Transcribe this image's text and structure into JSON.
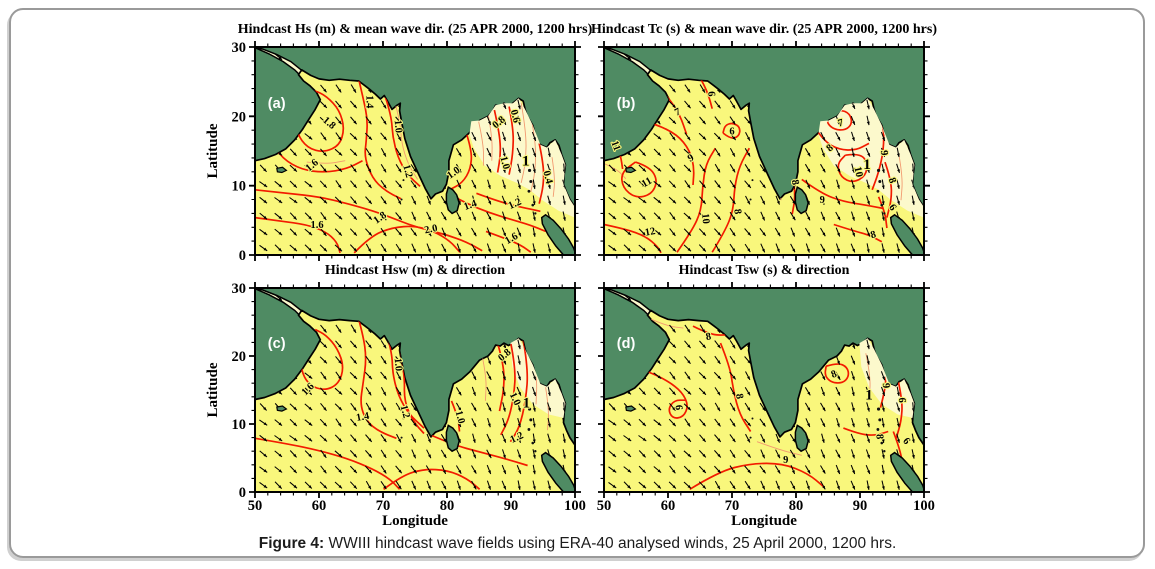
{
  "caption": {
    "label": "Figure 4:",
    "text": "WWIII hindcast wave fields using ERA-40 analysed winds, 25 April 2000, 1200 hrs."
  },
  "axes": {
    "x_label": "Longitude",
    "y_label": "Latitude",
    "x_ticks": [
      50,
      60,
      70,
      80,
      90,
      100
    ],
    "y_ticks": [
      30,
      20,
      10,
      0
    ],
    "x_range": [
      50,
      100
    ],
    "y_range": [
      0,
      30
    ],
    "minor_step_deg": 2
  },
  "colors": {
    "land": "#4f8b63",
    "sea": "#f9f77c",
    "sea_pale": "#fcf9cc",
    "coast": "#000000",
    "contour_major": "#f21b00",
    "contour_minor": "#f29a70",
    "arrow": "#000000",
    "panel_letter": "#ffffff",
    "frame": "#9a9a9a"
  },
  "panels": [
    {
      "id": "a",
      "letter": "(a)",
      "title": "Hindcast Hs (m) & mean wave dir. (25 APR 2000, 1200 hrs)",
      "contour_labels": [
        {
          "v": "1.8",
          "lon": 61.3,
          "lat": 18.7,
          "rot": 40
        },
        {
          "v": "1.6",
          "lon": 59.2,
          "lat": 12.6,
          "rot": -40
        },
        {
          "v": "1.4",
          "lon": 67.4,
          "lat": 22.1,
          "rot": 90
        },
        {
          "v": "1.0",
          "lon": 71.9,
          "lat": 18.5,
          "rot": 85
        },
        {
          "v": "1.2",
          "lon": 73.4,
          "lat": 12.0,
          "rot": 75
        },
        {
          "v": "0.8",
          "lon": 88.4,
          "lat": 18.8,
          "rot": -40
        },
        {
          "v": "0.6",
          "lon": 90.2,
          "lat": 19.9,
          "rot": 75
        },
        {
          "v": "1.0",
          "lon": 88.6,
          "lat": 13.2,
          "rot": 75
        },
        {
          "v": "1",
          "lon": 92.3,
          "lat": 12.9,
          "rot": 0,
          "big": true
        },
        {
          "v": "0.4",
          "lon": 95.3,
          "lat": 11.1,
          "rot": 75
        },
        {
          "v": "1.0",
          "lon": 81.3,
          "lat": 11.5,
          "rot": -35
        },
        {
          "v": "1.4",
          "lon": 83.8,
          "lat": 6.8,
          "rot": -20
        },
        {
          "v": "1.2",
          "lon": 90.8,
          "lat": 7.0,
          "rot": -25
        },
        {
          "v": "1.6",
          "lon": 59.7,
          "lat": 3.9,
          "rot": 0
        },
        {
          "v": "1.8",
          "lon": 69.8,
          "lat": 5.0,
          "rot": -35
        },
        {
          "v": "2.0",
          "lon": 77.6,
          "lat": 3.3,
          "rot": -12
        },
        {
          "v": "1.6",
          "lon": 90.3,
          "lat": 2.0,
          "rot": -30
        }
      ]
    },
    {
      "id": "b",
      "letter": "(b)",
      "title": "Hindcast Tc (s) & mean wave dir. (25 APR 2000, 1200 hrs)",
      "contour_labels": [
        {
          "v": "6",
          "lon": 66.3,
          "lat": 23.2,
          "rot": 85
        },
        {
          "v": "7",
          "lon": 61.7,
          "lat": 20.2,
          "rot": -25
        },
        {
          "v": "6",
          "lon": 70.0,
          "lat": 17.4,
          "rot": 0
        },
        {
          "v": "9",
          "lon": 63.8,
          "lat": 13.6,
          "rot": -30
        },
        {
          "v": "11",
          "lon": 51.4,
          "lat": 15.6,
          "rot": 70
        },
        {
          "v": "11",
          "lon": 56.9,
          "lat": 10.1,
          "rot": -30
        },
        {
          "v": "12",
          "lon": 57.3,
          "lat": 2.9,
          "rot": -10
        },
        {
          "v": "10",
          "lon": 65.4,
          "lat": 5.2,
          "rot": 85
        },
        {
          "v": "8",
          "lon": 70.4,
          "lat": 6.2,
          "rot": 82
        },
        {
          "v": "8",
          "lon": 79.4,
          "lat": 10.4,
          "rot": 80
        },
        {
          "v": "9",
          "lon": 84.1,
          "lat": 7.5,
          "rot": 0
        },
        {
          "v": "7",
          "lon": 87.1,
          "lat": 18.6,
          "rot": -15
        },
        {
          "v": "8",
          "lon": 85.6,
          "lat": 15.1,
          "rot": -40
        },
        {
          "v": "10",
          "lon": 89.3,
          "lat": 11.9,
          "rot": 78
        },
        {
          "v": "1",
          "lon": 91.1,
          "lat": 12.4,
          "rot": 0,
          "big": true
        },
        {
          "v": "9",
          "lon": 93.3,
          "lat": 14.7,
          "rot": 85
        },
        {
          "v": "8",
          "lon": 94.6,
          "lat": 10.6,
          "rot": 70
        },
        {
          "v": "6",
          "lon": 94.7,
          "lat": 6.6,
          "rot": 55
        },
        {
          "v": "8",
          "lon": 92.2,
          "lat": 2.5,
          "rot": -15
        }
      ]
    },
    {
      "id": "c",
      "letter": "(c)",
      "title": "Hindcast Hsw (m) & direction",
      "contour_labels": [
        {
          "v": "1.6",
          "lon": 58.6,
          "lat": 14.8,
          "rot": -45
        },
        {
          "v": "1.0",
          "lon": 71.9,
          "lat": 18.7,
          "rot": 85
        },
        {
          "v": "1.2",
          "lon": 73.0,
          "lat": 11.7,
          "rot": 75
        },
        {
          "v": "1.4",
          "lon": 66.9,
          "lat": 10.6,
          "rot": -10
        },
        {
          "v": "0.8",
          "lon": 89.3,
          "lat": 19.8,
          "rot": -40
        },
        {
          "v": "1.0",
          "lon": 90.2,
          "lat": 13.5,
          "rot": 65
        },
        {
          "v": "1",
          "lon": 92.4,
          "lat": 12.4,
          "rot": 0,
          "big": true
        },
        {
          "v": "1.0",
          "lon": 81.6,
          "lat": 10.9,
          "rot": 75
        },
        {
          "v": "1.2",
          "lon": 91.1,
          "lat": 7.6,
          "rot": -25
        }
      ]
    },
    {
      "id": "d",
      "letter": "(d)",
      "title": "Hindcast Tsw (s) & direction",
      "contour_labels": [
        {
          "v": "8",
          "lon": 66.4,
          "lat": 22.4,
          "rot": -10
        },
        {
          "v": "6",
          "lon": 61.2,
          "lat": 12.4,
          "rot": 85
        },
        {
          "v": "8",
          "lon": 70.7,
          "lat": 14.0,
          "rot": 80
        },
        {
          "v": "9",
          "lon": 78.4,
          "lat": 4.3,
          "rot": 0
        },
        {
          "v": "8",
          "lon": 86.1,
          "lat": 16.9,
          "rot": -20
        },
        {
          "v": "1",
          "lon": 91.4,
          "lat": 13.6,
          "rot": 0,
          "big": true
        },
        {
          "v": "9",
          "lon": 93.6,
          "lat": 15.6,
          "rot": 85
        },
        {
          "v": "8",
          "lon": 92.6,
          "lat": 8.1,
          "rot": 85
        },
        {
          "v": "6",
          "lon": 96.1,
          "lat": 13.5,
          "rot": 88
        },
        {
          "v": "6",
          "lon": 96.9,
          "lat": 7.2,
          "rot": 50
        }
      ]
    }
  ]
}
